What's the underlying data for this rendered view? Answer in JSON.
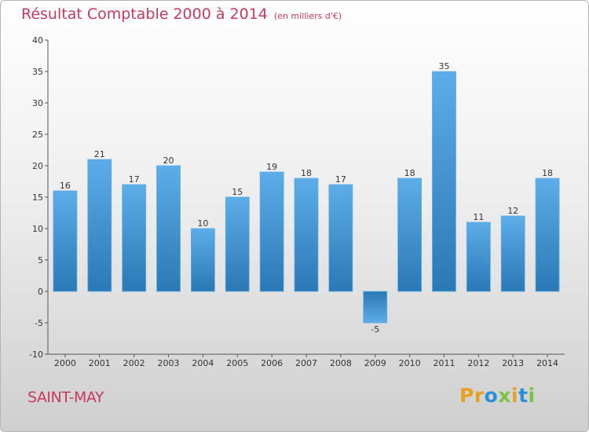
{
  "header": {
    "title": "Résultat Comptable 2000 à 2014",
    "unit": "(en milliers d'€)"
  },
  "footer": {
    "place": "SAINT-MAY",
    "brand": "Proxiti"
  },
  "colors": {
    "title": "#c8395f",
    "bar_light": "#5dade8",
    "bar_dark": "#2a78b5",
    "brand_letters": [
      "#e8a020",
      "#e8a020",
      "#2a8fd8",
      "#7cc242",
      "#e8a020",
      "#2a8fd8",
      "#7cc242"
    ]
  },
  "chart_data": {
    "type": "bar",
    "title": "Résultat Comptable 2000 à 2014",
    "unit_label": "(en milliers d'€)",
    "categories": [
      "2000",
      "2001",
      "2002",
      "2003",
      "2004",
      "2005",
      "2006",
      "2007",
      "2008",
      "2009",
      "2010",
      "2011",
      "2012",
      "2013",
      "2014"
    ],
    "values": [
      16,
      21,
      17,
      20,
      10,
      15,
      19,
      18,
      17,
      -5,
      18,
      35,
      11,
      12,
      18
    ],
    "data_labels": [
      "16",
      "21",
      "17",
      "20",
      "10",
      "15",
      "19",
      "18",
      "17",
      "-5",
      "18",
      "35",
      "11",
      "12",
      "18"
    ],
    "ylim": [
      -10,
      40
    ],
    "yticks": [
      -10,
      -5,
      0,
      5,
      10,
      15,
      20,
      25,
      30,
      35,
      40
    ],
    "grid": false,
    "legend": "none"
  }
}
